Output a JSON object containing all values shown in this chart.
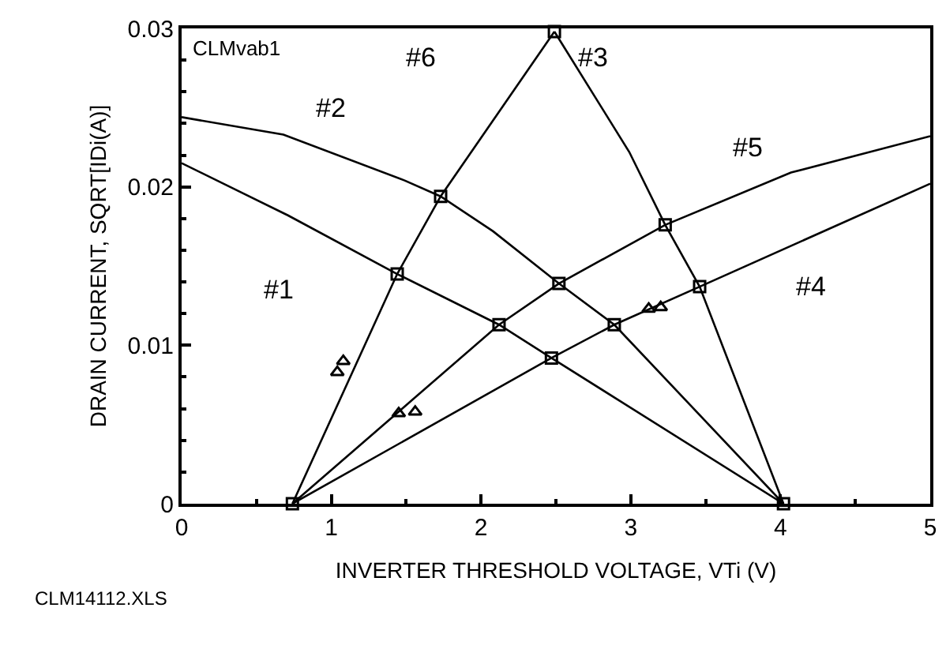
{
  "chart_data": {
    "type": "line",
    "xlabel": "INVERTER THRESHOLD VOLTAGE, VTi (V)",
    "ylabel": "DRAIN CURRENT, SQRT[IDi(A)]",
    "xlim": [
      0,
      5
    ],
    "xticks": [
      0,
      1,
      2,
      3,
      4,
      5
    ],
    "ylim": [
      0,
      0.03
    ],
    "yticks": [
      0,
      0.01,
      0.02,
      0.03
    ],
    "legend": false,
    "line_style": "solid",
    "series": [
      {
        "name": "#1",
        "color": "#000000",
        "x": [
          0,
          0.71,
          1.44,
          2.12,
          2.47,
          4.02
        ],
        "values": [
          0.0215,
          0.0182,
          0.0145,
          0.0113,
          0.0092,
          0
        ]
      },
      {
        "name": "#2",
        "color": "#000000",
        "x": [
          0,
          0.68,
          1.49,
          1.73,
          2.08,
          2.52,
          2.89,
          4.02
        ],
        "values": [
          0.0244,
          0.0233,
          0.0204,
          0.0194,
          0.0172,
          0.0139,
          0.0113,
          0
        ]
      },
      {
        "name": "#3",
        "color": "#000000",
        "x": [
          2.49,
          2.99,
          3.23,
          3.46,
          4.02
        ],
        "values": [
          0.0298,
          0.0222,
          0.0176,
          0.0137,
          0
        ]
      },
      {
        "name": "#4",
        "color": "#000000",
        "x": [
          0.74,
          2.47,
          2.89,
          3.46,
          5
        ],
        "values": [
          0,
          0.0092,
          0.0113,
          0.0137,
          0.0202
        ]
      },
      {
        "name": "#5",
        "color": "#000000",
        "x": [
          0.74,
          2.12,
          2.52,
          3.23,
          4.07,
          5
        ],
        "values": [
          0,
          0.0113,
          0.0139,
          0.0176,
          0.0209,
          0.0232
        ]
      },
      {
        "name": "#6",
        "color": "#000000",
        "x": [
          0.74,
          1.44,
          1.73,
          2.49
        ],
        "values": [
          0,
          0.0145,
          0.0194,
          0.0298
        ]
      },
      {
        "type": "scatter",
        "marker": "square",
        "color": "#000000",
        "x": [
          0.74,
          1.44,
          1.73,
          2.12,
          2.47,
          2.52,
          2.89,
          3.23,
          3.46,
          2.49,
          4.02
        ],
        "values": [
          0,
          0.0145,
          0.0194,
          0.0113,
          0.0092,
          0.0139,
          0.0113,
          0.0176,
          0.0137,
          0.0298,
          0
        ]
      },
      {
        "type": "scatter",
        "marker": "triangle",
        "color": "#000000",
        "x": [
          1.04,
          1.08,
          1.45,
          1.56,
          3.12,
          3.2
        ],
        "values": [
          0.0083,
          0.009,
          0.0057,
          0.0058,
          0.0123,
          0.0124
        ]
      }
    ],
    "annotations": [
      "CLMvab1",
      "CLM14112.XLS"
    ]
  }
}
